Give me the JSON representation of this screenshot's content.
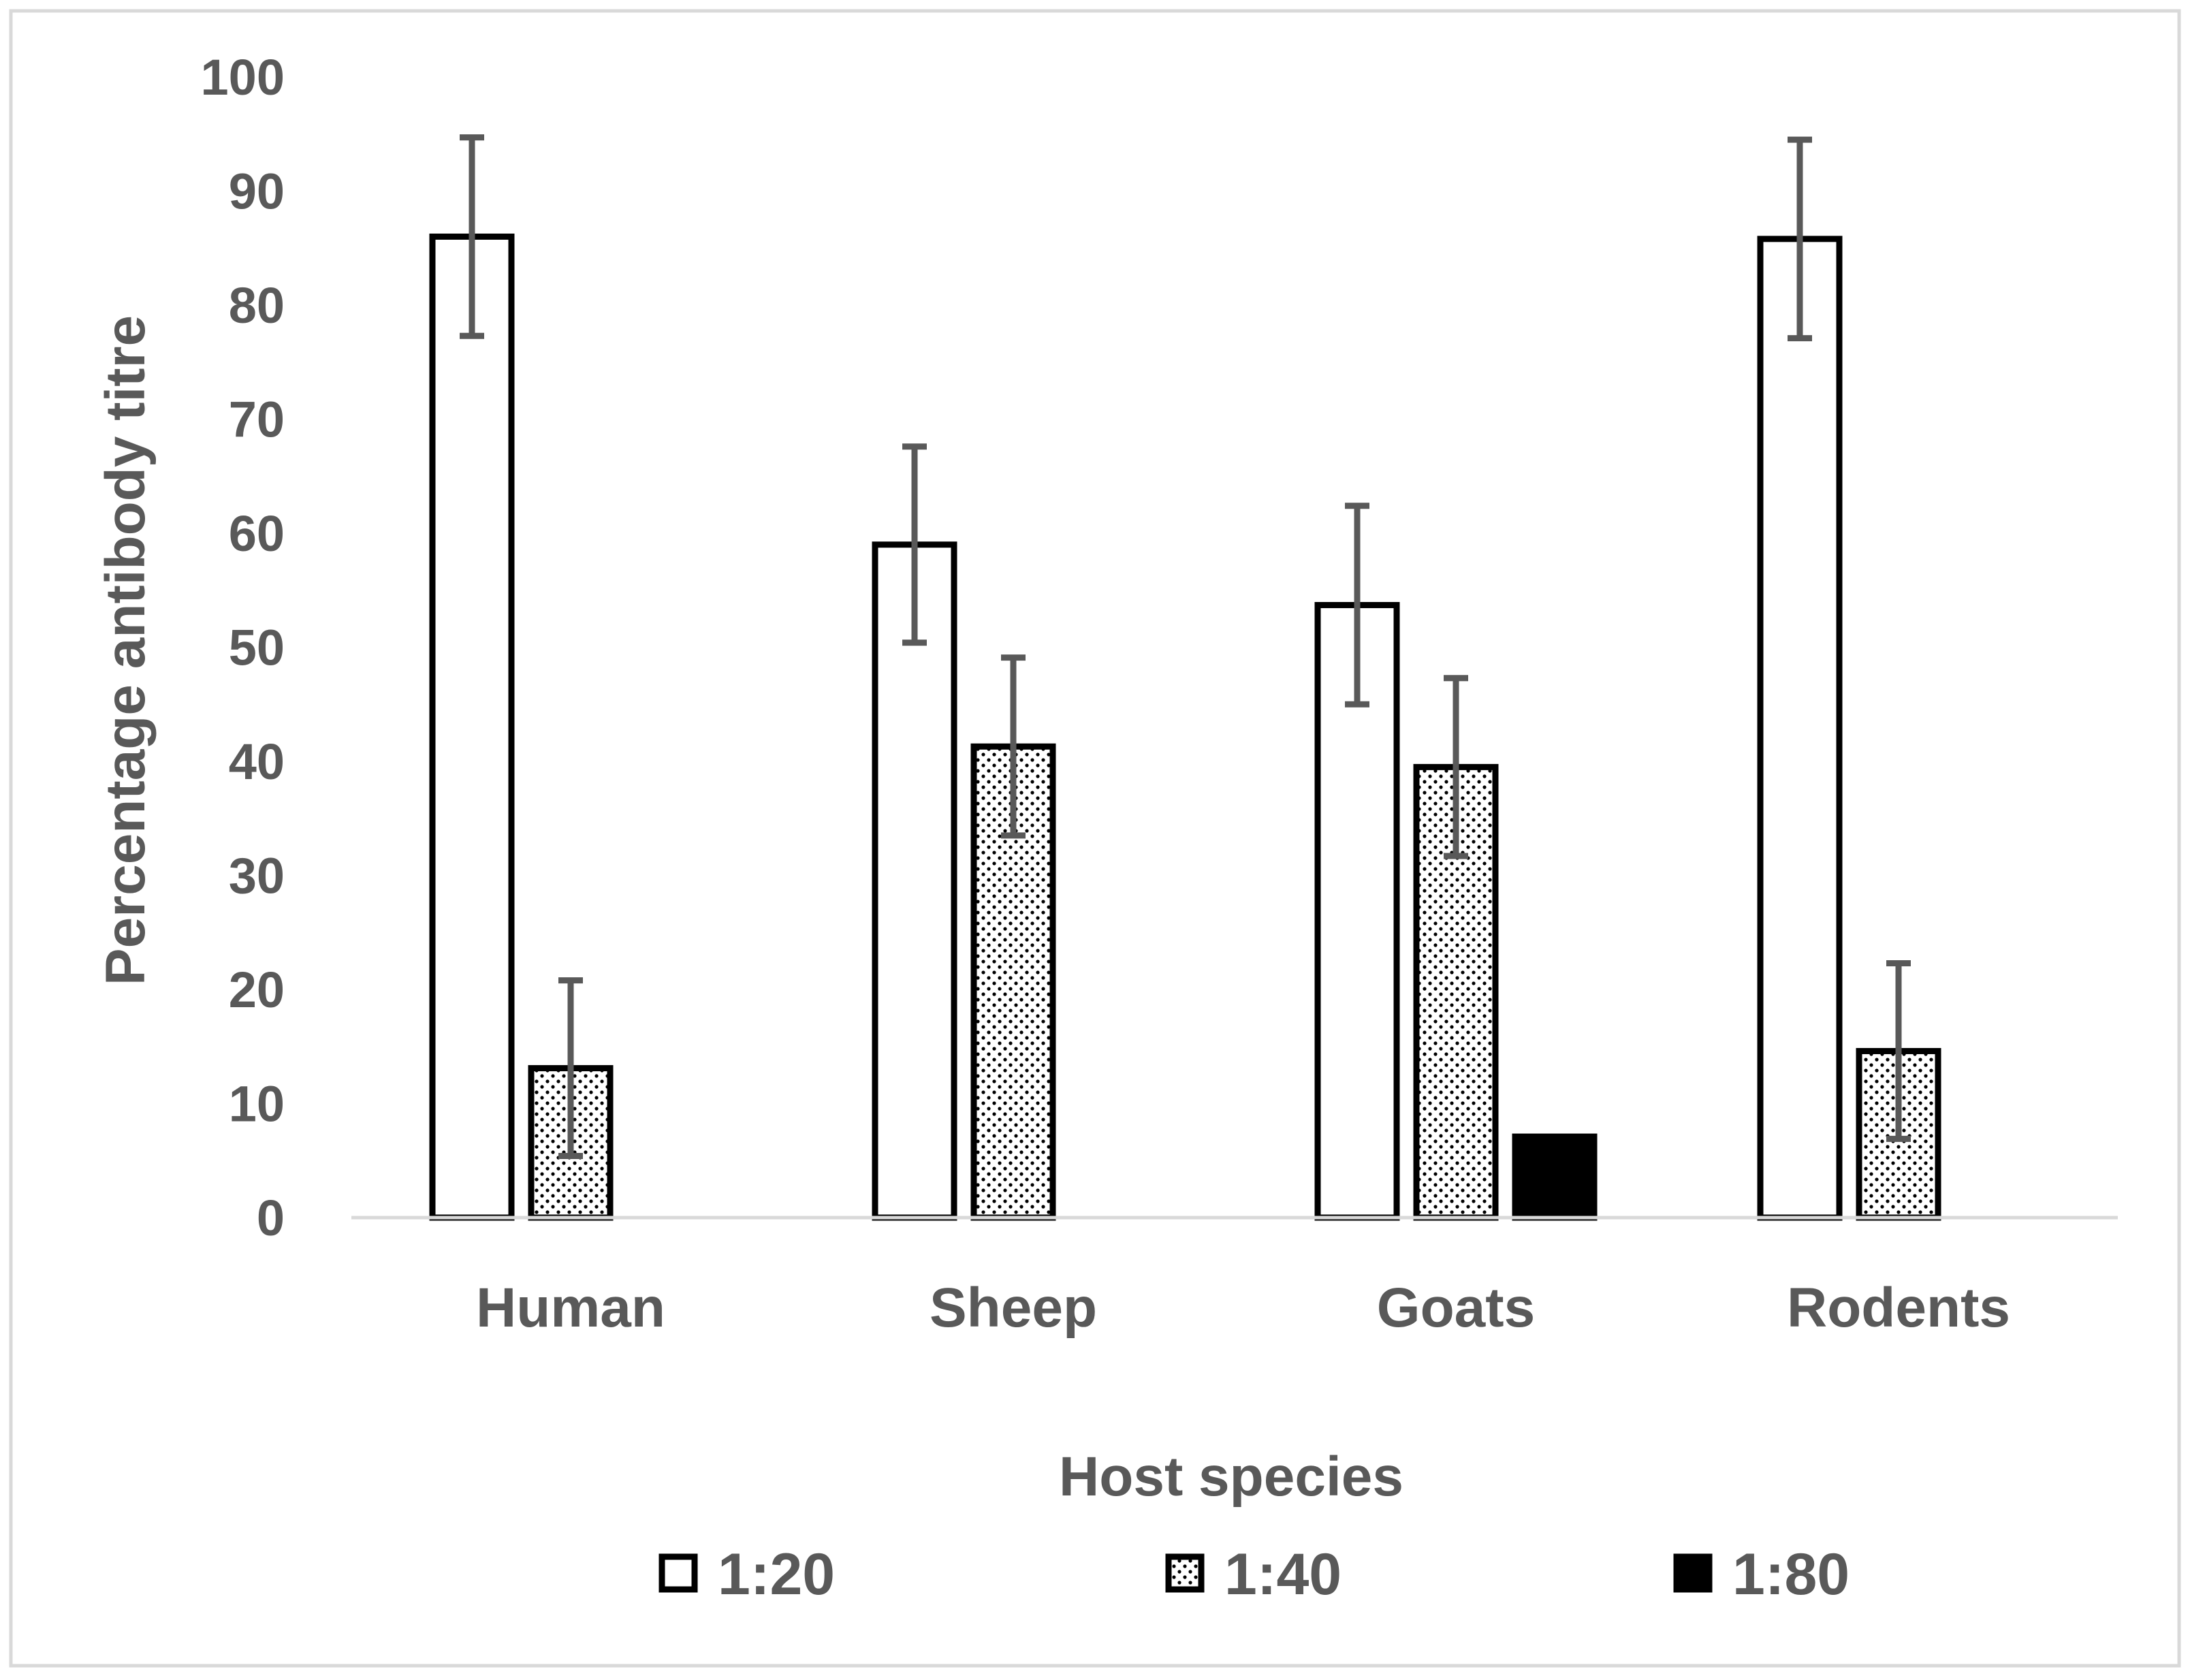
{
  "chart_data": {
    "type": "bar",
    "title": "",
    "xlabel": "Host species",
    "ylabel": "Percentage antibody titre",
    "ylim": [
      0,
      100
    ],
    "yticks": [
      0,
      10,
      20,
      30,
      40,
      50,
      60,
      70,
      80,
      90,
      100
    ],
    "grid": false,
    "legend_position": "bottom",
    "categories": [
      "Human",
      "Sheep",
      "Goats",
      "Rodents"
    ],
    "series": [
      {
        "name": "1:20",
        "pattern": "white",
        "values": [
          86,
          59,
          53.7,
          85.8
        ],
        "error": [
          8.7,
          8.6,
          8.7,
          8.7
        ]
      },
      {
        "name": "1:40",
        "pattern": "dotted",
        "values": [
          13.1,
          41.3,
          39.5,
          14.6
        ],
        "error": [
          7.7,
          7.8,
          7.8,
          7.7
        ]
      },
      {
        "name": "1:80",
        "pattern": "black",
        "values": [
          0,
          0,
          7.1,
          0
        ],
        "error": [
          0,
          0,
          0,
          0
        ]
      }
    ],
    "colors": {
      "bar_outline": "#000000",
      "bar_fill_white": "#ffffff",
      "bar_fill_black": "#000000",
      "error_bar": "#595959",
      "axis_line": "#d9d9d9",
      "text": "#595959",
      "border": "#d9d9d9"
    }
  }
}
